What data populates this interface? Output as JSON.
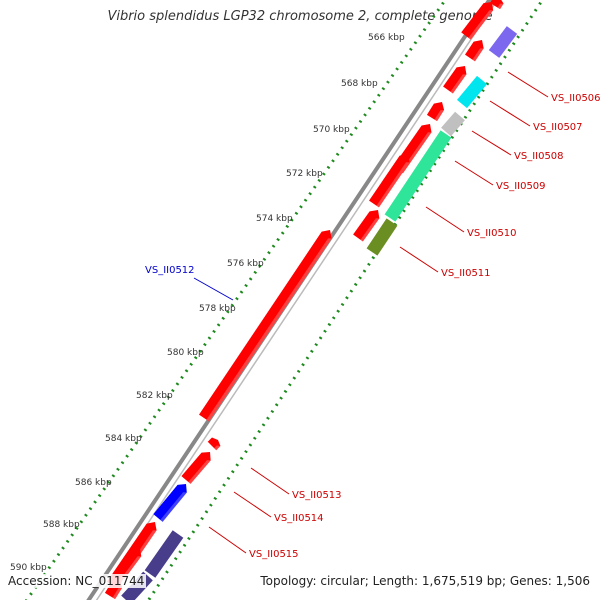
{
  "title": "Vibrio splendidus LGP32 chromosome 2, complete genome",
  "footer": {
    "accession": "Accession: NC_011744",
    "summary": "Topology: circular; Length: 1,675,519 bp; Genes: 1,506"
  },
  "colors": {
    "backbone": "#888888",
    "ruler_dots": "#1e8a1e",
    "ruler_text": "#333333",
    "label_forward": "#cc0000",
    "label_reverse": "#0000cc"
  },
  "ruler_ticks": [
    {
      "label": "566 kbp"
    },
    {
      "label": "568 kbp"
    },
    {
      "label": "570 kbp"
    },
    {
      "label": "572 kbp"
    },
    {
      "label": "574 kbp"
    },
    {
      "label": "576 kbp"
    },
    {
      "label": "578 kbp"
    },
    {
      "label": "580 kbp"
    },
    {
      "label": "582 kbp"
    },
    {
      "label": "584 kbp"
    },
    {
      "label": "586 kbp"
    },
    {
      "label": "588 kbp"
    },
    {
      "label": "590 kbp"
    }
  ],
  "gene_labels": [
    {
      "text": "VS_II0506"
    },
    {
      "text": "VS_II0507"
    },
    {
      "text": "VS_II0508"
    },
    {
      "text": "VS_II0509"
    },
    {
      "text": "VS_II0510"
    },
    {
      "text": "VS_II0511"
    },
    {
      "text": "VS_II0512"
    },
    {
      "text": "VS_II0513"
    },
    {
      "text": "VS_II0514"
    },
    {
      "text": "VS_II0515"
    }
  ],
  "genes": [
    {
      "strand": "+",
      "color": "#ff0000"
    },
    {
      "strand": "+",
      "color": "#ff0000"
    },
    {
      "strand": "+",
      "color": "#ff0000"
    },
    {
      "strand": "+",
      "color": "#ff0000"
    },
    {
      "strand": "+",
      "color": "#ff0000"
    },
    {
      "strand": "+",
      "color": "#ff0000"
    },
    {
      "strand": "+",
      "color": "#ff0000"
    },
    {
      "strand": "+",
      "color": "#ff0000"
    },
    {
      "strand": "+",
      "color": "#ff0000"
    },
    {
      "strand": "+",
      "color": "#ff0000"
    },
    {
      "strand": "-",
      "color": "#0000ff"
    },
    {
      "strand": "+",
      "color": "#ff0000"
    },
    {
      "strand": "+",
      "color": "#ff0000"
    },
    {
      "strand": "+",
      "color": "#ff0000"
    },
    {
      "strand": "+",
      "color": "#ff0000"
    }
  ],
  "features": [
    {
      "color": "#7b68ee"
    },
    {
      "color": "#00e5ee"
    },
    {
      "color": "#c0c0c0"
    },
    {
      "color": "#2ee59a"
    },
    {
      "color": "#6b8e23"
    },
    {
      "color": "#483d8b"
    },
    {
      "color": "#483d8b"
    }
  ]
}
